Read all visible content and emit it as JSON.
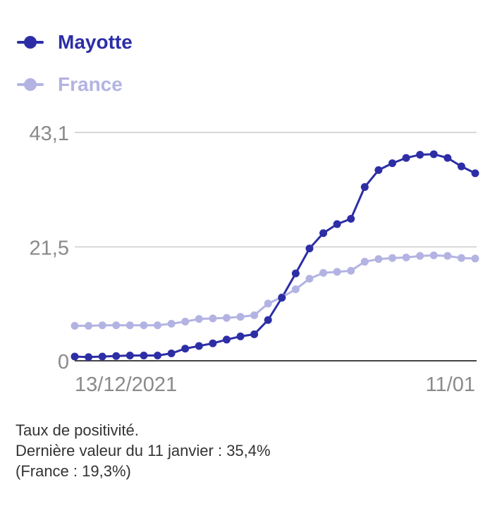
{
  "legend": [
    {
      "name": "Mayotte",
      "color": "#2d2ea6"
    },
    {
      "name": "France",
      "color": "#b3b3e3"
    }
  ],
  "chart_data": {
    "type": "line",
    "x_start_label": "13/12/2021",
    "x_end_label": "11/01",
    "y_ticks": [
      "0",
      "21,5",
      "43,1"
    ],
    "ylim": [
      0,
      43.1
    ],
    "grid": true,
    "legend_position": "top-left",
    "series": [
      {
        "name": "Mayotte",
        "color": "#2d2ea6",
        "values": [
          0.8,
          0.7,
          0.8,
          0.9,
          1.0,
          1.0,
          1.0,
          1.4,
          2.3,
          2.8,
          3.3,
          4.0,
          4.6,
          5.0,
          7.7,
          11.9,
          16.5,
          21.2,
          24.1,
          25.8,
          26.8,
          32.8,
          36.0,
          37.3,
          38.3,
          38.9,
          39.0,
          38.3,
          36.7,
          35.4
        ]
      },
      {
        "name": "France",
        "color": "#b3b3e3",
        "values": [
          6.6,
          6.6,
          6.7,
          6.7,
          6.7,
          6.7,
          6.7,
          7.0,
          7.4,
          7.9,
          8.0,
          8.1,
          8.3,
          8.6,
          10.8,
          12.0,
          13.5,
          15.5,
          16.6,
          16.8,
          17.0,
          18.7,
          19.2,
          19.4,
          19.5,
          19.8,
          19.9,
          19.8,
          19.4,
          19.3
        ]
      }
    ]
  },
  "caption": {
    "line1": "Taux de positivité.",
    "line2": "Dernière valeur du 11 janvier : 35,4%",
    "line3": "(France : 19,3%)"
  }
}
